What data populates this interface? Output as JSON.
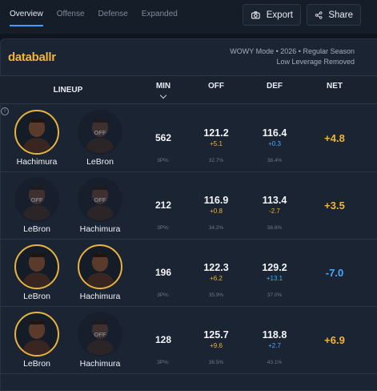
{
  "tabs": [
    {
      "label": "Overview",
      "active": true
    },
    {
      "label": "Offense",
      "active": false
    },
    {
      "label": "Defense",
      "active": false
    },
    {
      "label": "Expanded",
      "active": false
    }
  ],
  "toolbar": {
    "export_label": "Export",
    "share_label": "Share"
  },
  "logo": "databallr",
  "meta": {
    "line1": "WOWY Mode • 2026 • Regular Season",
    "line2": "Low Leverage Removed"
  },
  "columns": {
    "lineup": "LINEUP",
    "min": "MIN",
    "off": "OFF",
    "def": "DEF",
    "net": "NET"
  },
  "info_icon": "i",
  "p3_label": "3P%:",
  "colors": {
    "accent": "#3aa0ff",
    "brand": "#f2b632",
    "positive": "#f0b43a",
    "negative": "#4aa8ff"
  },
  "rows": [
    {
      "players": [
        {
          "name": "Hachimura",
          "status": "on",
          "off_label": ""
        },
        {
          "name": "LeBron",
          "status": "off",
          "off_label": "OFF"
        }
      ],
      "min": "562",
      "off": {
        "value": "121.2",
        "diff": "+5.1",
        "p3": "32.7%"
      },
      "def": {
        "value": "116.4",
        "diff": "+0.3",
        "p3": "38.4%"
      },
      "net": "+4.8"
    },
    {
      "players": [
        {
          "name": "LeBron",
          "status": "off",
          "off_label": "OFF"
        },
        {
          "name": "Hachimura",
          "status": "off",
          "off_label": "OFF"
        }
      ],
      "min": "212",
      "off": {
        "value": "116.9",
        "diff": "+0.8",
        "p3": "34.2%"
      },
      "def": {
        "value": "113.4",
        "diff": "-2.7",
        "p3": "38.6%"
      },
      "net": "+3.5"
    },
    {
      "players": [
        {
          "name": "LeBron",
          "status": "on",
          "off_label": ""
        },
        {
          "name": "Hachimura",
          "status": "on",
          "off_label": ""
        }
      ],
      "min": "196",
      "off": {
        "value": "122.3",
        "diff": "+6.2",
        "p3": "35.9%"
      },
      "def": {
        "value": "129.2",
        "diff": "+13.1",
        "p3": "37.0%"
      },
      "net": "-7.0"
    },
    {
      "players": [
        {
          "name": "LeBron",
          "status": "on",
          "off_label": ""
        },
        {
          "name": "Hachimura",
          "status": "off",
          "off_label": "OFF"
        }
      ],
      "min": "128",
      "off": {
        "value": "125.7",
        "diff": "+9.6",
        "p3": "36.5%"
      },
      "def": {
        "value": "118.8",
        "diff": "+2.7",
        "p3": "43.1%"
      },
      "net": "+6.9"
    }
  ]
}
